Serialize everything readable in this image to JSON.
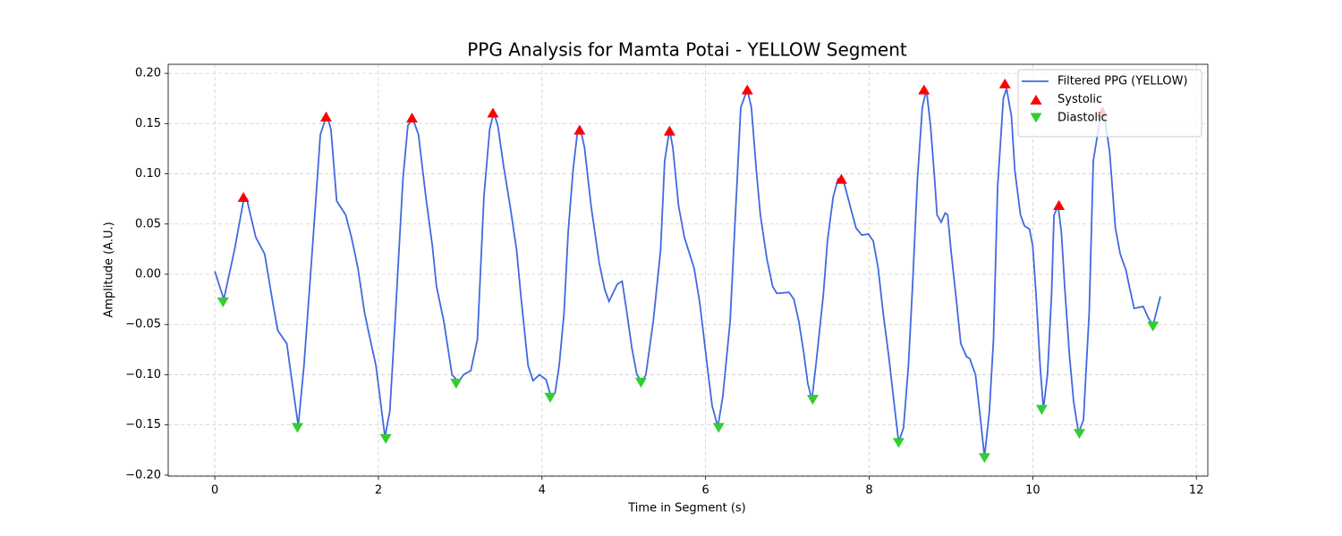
{
  "chart_data": {
    "type": "line",
    "title": "PPG Analysis for Mamta Potai - YELLOW Segment",
    "x_label": "Time in Segment (s)",
    "y_label": "Amplitude (A.U.)",
    "xlim": [
      -0.57,
      12.14
    ],
    "ylim": [
      -0.201,
      0.209
    ],
    "xticks": [
      0,
      2,
      4,
      6,
      8,
      10,
      12
    ],
    "yticks": [
      {
        "value": -0.2,
        "label": "−0.20"
      },
      {
        "value": -0.15,
        "label": "−0.15"
      },
      {
        "value": -0.1,
        "label": "−0.10"
      },
      {
        "value": -0.05,
        "label": "−0.05"
      },
      {
        "value": 0,
        "label": "0.00"
      },
      {
        "value": 0.05,
        "label": "0.05"
      },
      {
        "value": 0.1,
        "label": "0.10"
      },
      {
        "value": 0.15,
        "label": "0.15"
      },
      {
        "value": 0.2,
        "label": "0.20"
      }
    ],
    "grid": true,
    "legend_position": "upper right",
    "series": [
      {
        "name": "Filtered PPG (YELLOW)",
        "type": "line",
        "color": "#4169e1",
        "x": [
          0,
          0.11,
          0.24,
          0.35,
          0.39,
          0.5,
          0.61,
          0.71,
          0.77,
          0.88,
          0.91,
          1.02,
          1.09,
          1.16,
          1.23,
          1.29,
          1.37,
          1.42,
          1.49,
          1.6,
          1.67,
          1.75,
          1.83,
          1.9,
          1.97,
          2.08,
          2.14,
          2.21,
          2.3,
          2.36,
          2.42,
          2.49,
          2.58,
          2.66,
          2.71,
          2.8,
          2.9,
          2.98,
          3.04,
          3.13,
          3.21,
          3.29,
          3.36,
          3.41,
          3.46,
          3.53,
          3.61,
          3.69,
          3.74,
          3.83,
          3.89,
          3.97,
          4.05,
          4.11,
          4.16,
          4.21,
          4.27,
          4.32,
          4.38,
          4.43,
          4.47,
          4.52,
          4.6,
          4.7,
          4.77,
          4.82,
          4.92,
          4.98,
          5.03,
          5.1,
          5.16,
          5.22,
          5.27,
          5.36,
          5.45,
          5.5,
          5.56,
          5.6,
          5.67,
          5.74,
          5.86,
          5.93,
          6.02,
          6.08,
          6.15,
          6.21,
          6.3,
          6.37,
          6.43,
          6.51,
          6.56,
          6.62,
          6.67,
          6.75,
          6.82,
          6.87,
          7.02,
          7.08,
          7.14,
          7.2,
          7.25,
          7.3,
          7.36,
          7.44,
          7.49,
          7.56,
          7.62,
          7.68,
          7.78,
          7.84,
          7.91,
          7.99,
          8.05,
          8.11,
          8.17,
          8.24,
          8.29,
          8.36,
          8.42,
          8.48,
          8.53,
          8.59,
          8.65,
          8.7,
          8.75,
          8.8,
          8.83,
          8.88,
          8.93,
          8.96,
          9.0,
          9.07,
          9.12,
          9.19,
          9.23,
          9.3,
          9.35,
          9.41,
          9.47,
          9.52,
          9.57,
          9.64,
          9.68,
          9.74,
          9.78,
          9.85,
          9.9,
          9.96,
          10.0,
          10.04,
          10.09,
          10.13,
          10.18,
          10.23,
          10.26,
          10.31,
          10.35,
          10.39,
          10.45,
          10.5,
          10.56,
          10.62,
          10.69,
          10.74,
          10.81,
          10.86,
          10.94,
          11.01,
          11.07,
          11.14,
          11.18,
          11.24,
          11.35,
          11.41,
          11.47,
          11.56
        ],
        "values": [
          0.003,
          -0.025,
          0.024,
          0.073,
          0.075,
          0.037,
          0.02,
          -0.029,
          -0.056,
          -0.069,
          -0.087,
          -0.151,
          -0.091,
          -0.012,
          0.068,
          0.139,
          0.159,
          0.144,
          0.073,
          0.059,
          0.037,
          0.006,
          -0.038,
          -0.065,
          -0.091,
          -0.162,
          -0.136,
          -0.038,
          0.095,
          0.148,
          0.155,
          0.139,
          0.077,
          0.028,
          -0.012,
          -0.047,
          -0.1,
          -0.107,
          -0.1,
          -0.096,
          -0.065,
          0.077,
          0.144,
          0.161,
          0.148,
          0.108,
          0.068,
          0.024,
          -0.02,
          -0.091,
          -0.106,
          -0.1,
          -0.105,
          -0.122,
          -0.118,
          -0.091,
          -0.038,
          0.042,
          0.104,
          0.139,
          0.145,
          0.126,
          0.068,
          0.011,
          -0.016,
          -0.027,
          -0.01,
          -0.007,
          -0.034,
          -0.074,
          -0.1,
          -0.107,
          -0.1,
          -0.047,
          0.024,
          0.113,
          0.144,
          0.126,
          0.068,
          0.037,
          0.006,
          -0.029,
          -0.091,
          -0.131,
          -0.152,
          -0.122,
          -0.047,
          0.068,
          0.166,
          0.184,
          0.166,
          0.104,
          0.059,
          0.015,
          -0.012,
          -0.019,
          -0.018,
          -0.025,
          -0.047,
          -0.078,
          -0.109,
          -0.125,
          -0.082,
          -0.02,
          0.033,
          0.077,
          0.095,
          0.095,
          0.064,
          0.046,
          0.039,
          0.04,
          0.033,
          0.006,
          -0.038,
          -0.082,
          -0.118,
          -0.167,
          -0.153,
          -0.091,
          -0.012,
          0.095,
          0.166,
          0.184,
          0.148,
          0.095,
          0.059,
          0.052,
          0.061,
          0.059,
          0.024,
          -0.029,
          -0.069,
          -0.082,
          -0.084,
          -0.1,
          -0.136,
          -0.182,
          -0.136,
          -0.065,
          0.086,
          0.175,
          0.185,
          0.157,
          0.104,
          0.059,
          0.048,
          0.045,
          0.028,
          -0.02,
          -0.091,
          -0.134,
          -0.1,
          -0.02,
          0.059,
          0.068,
          0.042,
          -0.012,
          -0.082,
          -0.127,
          -0.158,
          -0.145,
          -0.038,
          0.113,
          0.148,
          0.166,
          0.122,
          0.046,
          0.02,
          0.004,
          -0.012,
          -0.034,
          -0.032,
          -0.043,
          -0.051,
          -0.022
        ]
      },
      {
        "name": "Systolic",
        "type": "scatter",
        "marker": "triangle-up",
        "color": "#ff0000",
        "x": [
          0.35,
          1.36,
          2.41,
          3.4,
          4.46,
          5.56,
          6.51,
          7.66,
          8.67,
          9.66,
          10.32,
          10.85
        ],
        "values": [
          0.077,
          0.157,
          0.156,
          0.161,
          0.144,
          0.143,
          0.184,
          0.095,
          0.184,
          0.19,
          0.069,
          0.162
        ]
      },
      {
        "name": "Diastolic",
        "type": "scatter",
        "marker": "triangle-down",
        "color": "#32cd32",
        "x": [
          0.1,
          1.01,
          2.09,
          2.95,
          4.1,
          5.21,
          6.16,
          7.31,
          8.36,
          9.41,
          10.11,
          10.57,
          11.47
        ],
        "values": [
          -0.028,
          -0.153,
          -0.164,
          -0.109,
          -0.123,
          -0.108,
          -0.153,
          -0.125,
          -0.168,
          -0.183,
          -0.135,
          -0.159,
          -0.052
        ]
      }
    ]
  }
}
